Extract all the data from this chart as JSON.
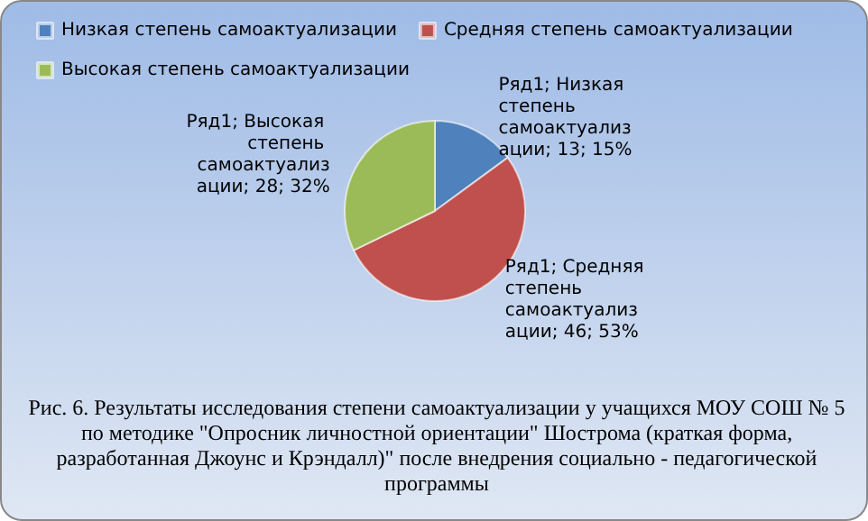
{
  "chart_data": {
    "type": "pie",
    "categories": [
      "Низкая степень самоактуализации",
      "Средняя степень самоактуализации",
      "Высокая степень самоактуализации"
    ],
    "values": [
      13,
      46,
      28
    ],
    "colors": [
      "#4f81bd",
      "#c0504d",
      "#9bbb59"
    ],
    "value_labels": [
      "Ряд1; Низкая степень самоактуализации; 13; 15%",
      "Ряд1; Средняя степень самоактуализации; 46; 53%",
      "Ряд1; Высокая степень самоактуализации; 28; 32%"
    ],
    "legend": "top",
    "annotations": [
      "Рис. 6. Результаты исследования  степени самоактуализации  у учащихся МОУ СОШ № 5 по методике \"Опросник личностной ориентации\" Шострома (краткая форма, разработанная Джоунс и Крэндалл)\" после внедрения социально - педагогической программы"
    ]
  }
}
